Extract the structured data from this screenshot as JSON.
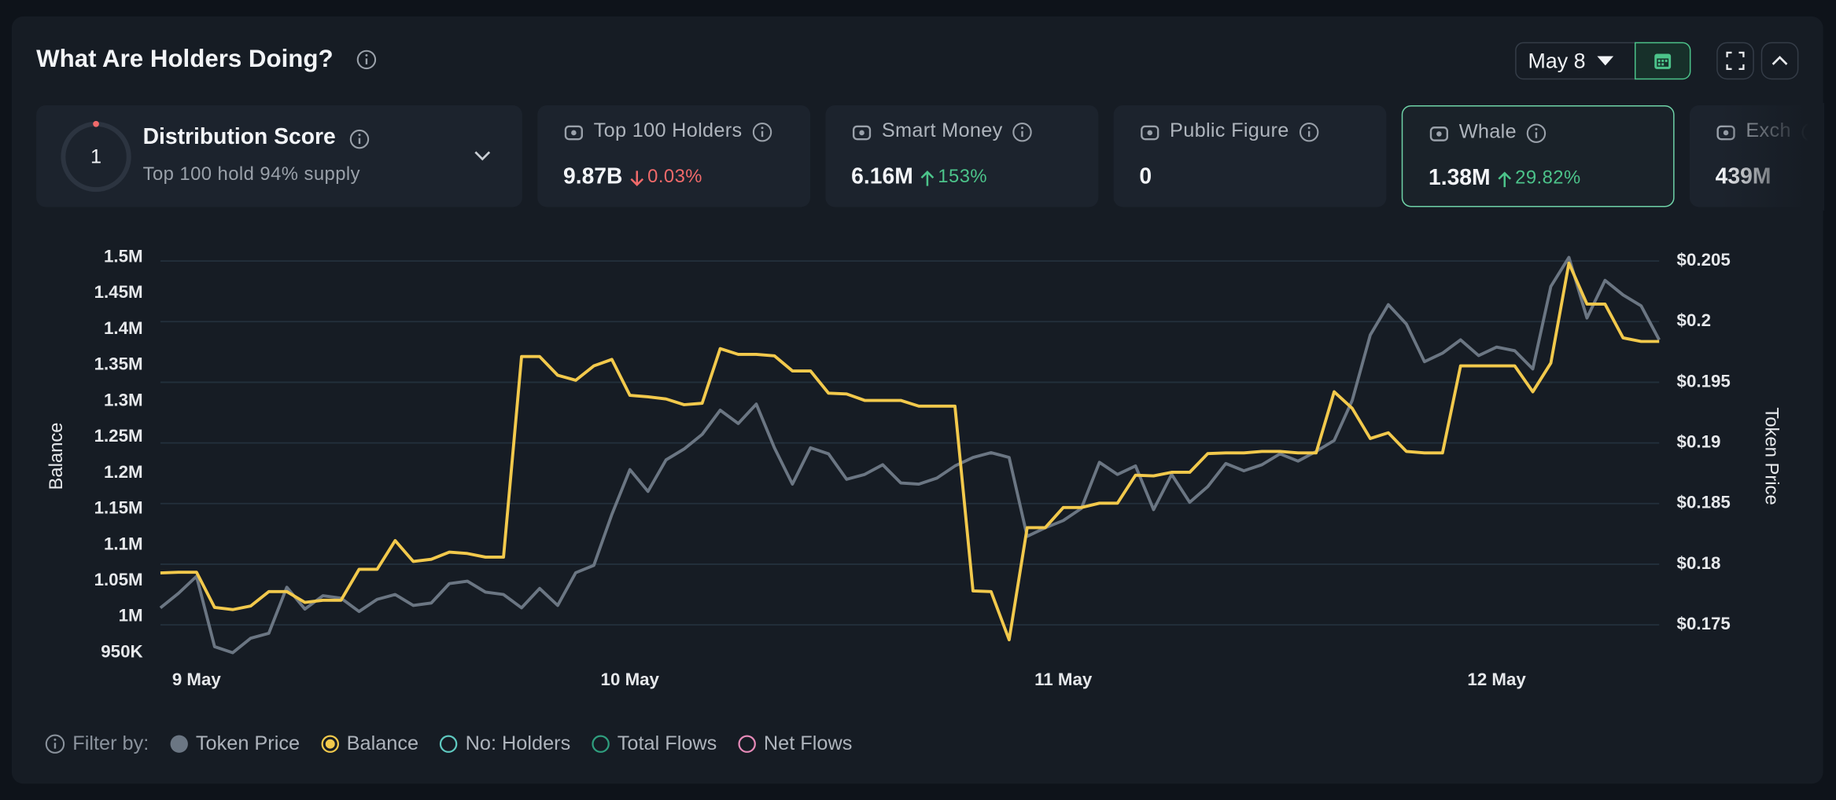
{
  "header": {
    "title": "What Are Holders Doing?",
    "date": "May 8"
  },
  "distribution": {
    "score": "1",
    "title": "Distribution Score",
    "subtitle": "Top 100 hold 94% supply"
  },
  "cards": [
    {
      "label": "Top 100 Holders",
      "value": "9.87B",
      "change": "0.03%",
      "direction": "down"
    },
    {
      "label": "Smart Money",
      "value": "6.16M",
      "change": "153%",
      "direction": "up"
    },
    {
      "label": "Public Figure",
      "value": "0"
    },
    {
      "label": "Whale",
      "value": "1.38M",
      "change": "29.82%",
      "direction": "up",
      "selected": true
    },
    {
      "label": "Exch",
      "value": "439M"
    }
  ],
  "chart_data": {
    "type": "line",
    "ylabel": "Balance",
    "y2label": "Token Price",
    "grid": true,
    "categories": [
      null,
      null,
      "9 May",
      null,
      null,
      null,
      null,
      null,
      null,
      null,
      null,
      null,
      null,
      null,
      null,
      null,
      null,
      null,
      null,
      null,
      null,
      null,
      null,
      null,
      null,
      null,
      "10 May",
      null,
      null,
      null,
      null,
      null,
      null,
      null,
      null,
      null,
      null,
      null,
      null,
      null,
      null,
      null,
      null,
      null,
      null,
      null,
      null,
      null,
      null,
      null,
      "11 May",
      null,
      null,
      null,
      null,
      null,
      null,
      null,
      null,
      null,
      null,
      null,
      null,
      null,
      null,
      null,
      null,
      null,
      null,
      null,
      null,
      null,
      null,
      null,
      "12 May",
      null,
      null,
      null,
      null,
      null,
      null,
      null,
      null,
      null
    ],
    "series": [
      {
        "name": "Token Price",
        "color": "#6b7683",
        "axis": "y2",
        "values": [
          0.1764,
          0.1776,
          0.179,
          0.1732,
          0.1727,
          0.1739,
          0.1743,
          0.1781,
          0.1763,
          0.1774,
          0.1772,
          0.1761,
          0.1771,
          0.1775,
          0.1766,
          0.1768,
          0.1784,
          0.1786,
          0.1777,
          0.1775,
          0.1764,
          0.178,
          0.1766,
          0.1793,
          0.1799,
          0.1841,
          0.1878,
          0.186,
          0.1886,
          0.1895,
          0.1907,
          0.1927,
          0.1916,
          0.1932,
          0.1896,
          0.1866,
          0.1896,
          0.1891,
          0.187,
          0.1874,
          0.1882,
          0.1867,
          0.1866,
          0.1871,
          0.1881,
          0.1888,
          0.1892,
          0.1888,
          0.1823,
          0.183,
          0.1836,
          0.1846,
          0.1884,
          0.1874,
          0.1881,
          0.1845,
          0.1874,
          0.1851,
          0.1864,
          0.1883,
          0.1877,
          0.1882,
          0.1891,
          0.1885,
          0.1893,
          0.1902,
          0.1935,
          0.1989,
          0.2014,
          0.1998,
          0.1967,
          0.1974,
          0.1985,
          0.1972,
          0.1979,
          0.1976,
          0.1961,
          0.2029,
          0.2053,
          0.2003,
          0.2034,
          0.2022,
          0.2013,
          0.1985
        ]
      },
      {
        "name": "Balance",
        "color": "#f2c94c",
        "values": [
          1061000,
          1062000,
          1062000,
          1013000,
          1010000,
          1015000,
          1035000,
          1035000,
          1020000,
          1023000,
          1023000,
          1066000,
          1066000,
          1106000,
          1077000,
          1080000,
          1090000,
          1088000,
          1083000,
          1083000,
          1362000,
          1362000,
          1336000,
          1329000,
          1349000,
          1358000,
          1308000,
          1306000,
          1303000,
          1295000,
          1297000,
          1373000,
          1365000,
          1365000,
          1363000,
          1342000,
          1342000,
          1311000,
          1310000,
          1301000,
          1301000,
          1301000,
          1293000,
          1293000,
          1293000,
          1036000,
          1035000,
          968000,
          1124000,
          1124000,
          1152000,
          1152000,
          1158000,
          1158000,
          1197000,
          1196000,
          1201000,
          1201000,
          1227000,
          1228000,
          1228000,
          1230000,
          1230000,
          1228000,
          1228000,
          1313000,
          1290000,
          1248000,
          1256000,
          1230000,
          1228000,
          1228000,
          1349000,
          1349000,
          1349000,
          1349000,
          1313000,
          1353000,
          1492000,
          1435000,
          1435000,
          1388000,
          1383000,
          1383000
        ]
      }
    ],
    "ylim": [
      950000,
      1500000
    ],
    "yticks": [
      {
        "value": 950000,
        "label": "950K"
      },
      {
        "value": 1000000,
        "label": "1M"
      },
      {
        "value": 1050000,
        "label": "1.05M"
      },
      {
        "value": 1100000,
        "label": "1.1M"
      },
      {
        "value": 1150000,
        "label": "1.15M"
      },
      {
        "value": 1200000,
        "label": "1.2M"
      },
      {
        "value": 1250000,
        "label": "1.25M"
      },
      {
        "value": 1300000,
        "label": "1.3M"
      },
      {
        "value": 1350000,
        "label": "1.35M"
      },
      {
        "value": 1400000,
        "label": "1.4M"
      },
      {
        "value": 1450000,
        "label": "1.45M"
      },
      {
        "value": 1500000,
        "label": "1.5M"
      }
    ],
    "y2lim": [
      0.1727,
      0.2053
    ],
    "y2ticks": [
      {
        "value": 0.175,
        "label": "$0.175"
      },
      {
        "value": 0.18,
        "label": "$0.18"
      },
      {
        "value": 0.185,
        "label": "$0.185"
      },
      {
        "value": 0.19,
        "label": "$0.19"
      },
      {
        "value": 0.195,
        "label": "$0.195"
      },
      {
        "value": 0.2,
        "label": "$0.2"
      },
      {
        "value": 0.205,
        "label": "$0.205"
      }
    ]
  },
  "filter": {
    "label": "Filter by:",
    "options": [
      {
        "name": "No: Holders",
        "color": "#5fc9c0"
      },
      {
        "name": "Total Flows",
        "color": "#2f9e7e"
      },
      {
        "name": "Net Flows",
        "color": "#e68ab8"
      }
    ]
  }
}
